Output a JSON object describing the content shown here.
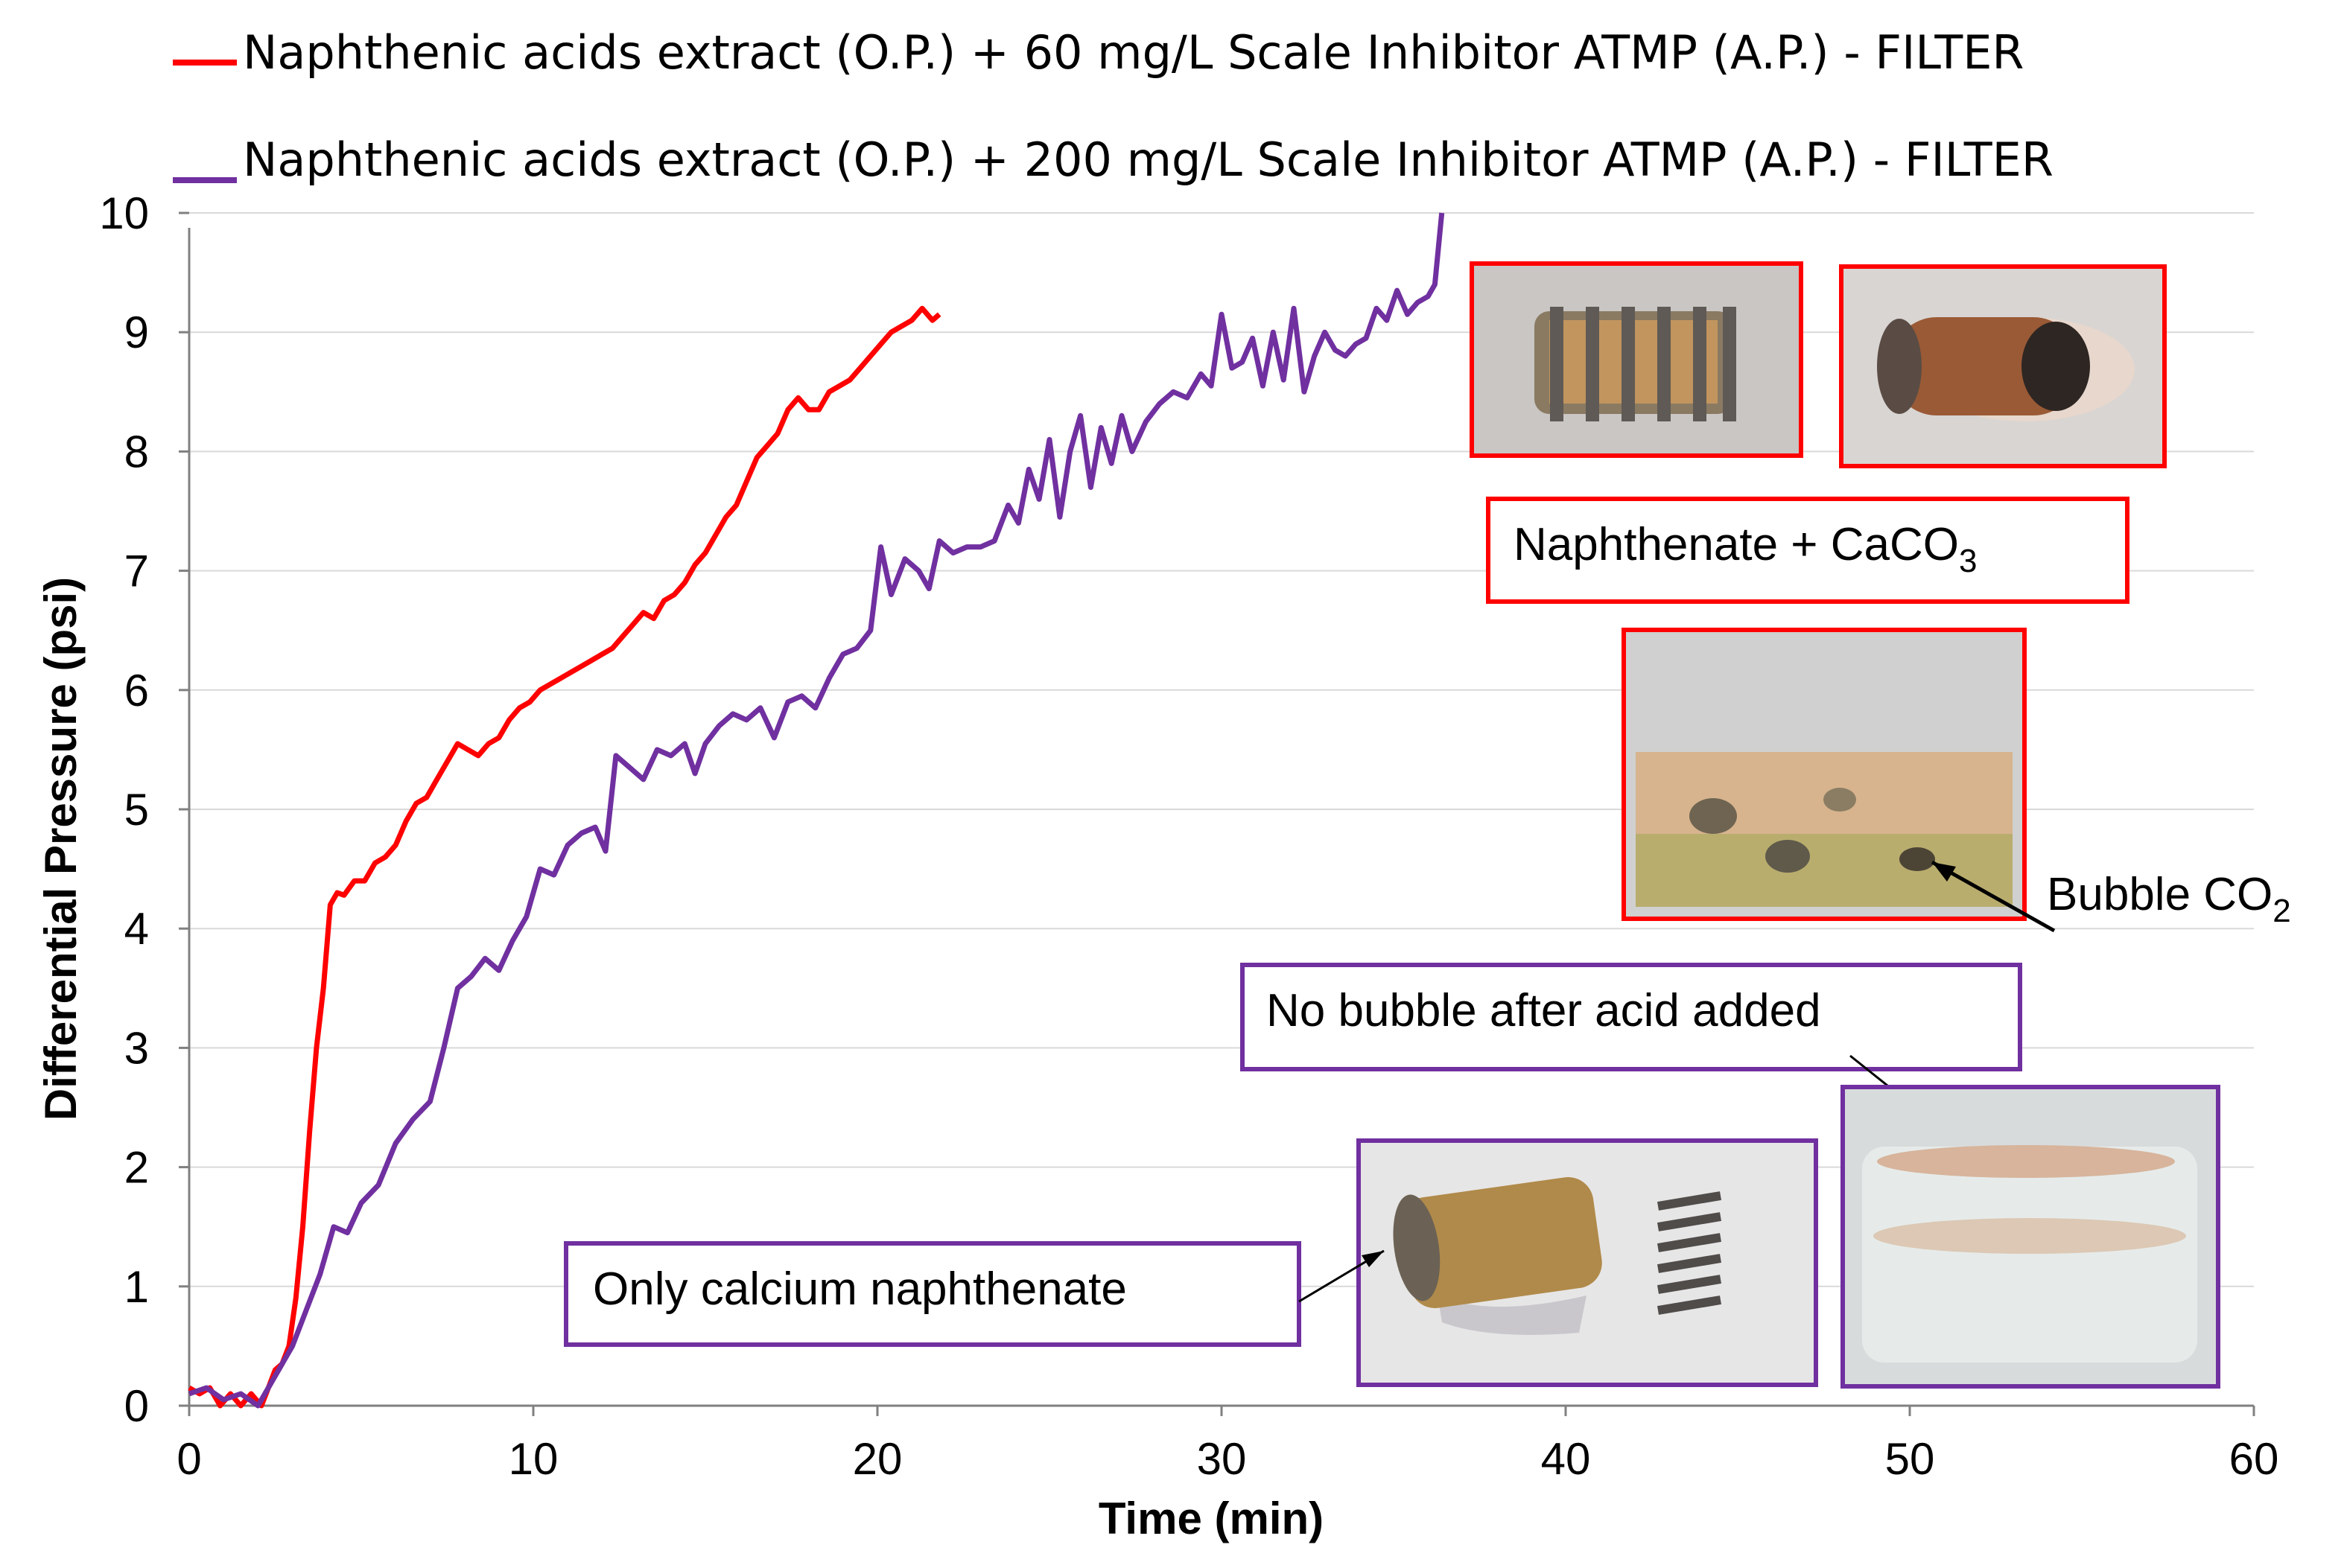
{
  "chart_data": {
    "type": "line",
    "xlabel": "Time (min)",
    "ylabel": "Differential Pressure (psi)",
    "xlim": [
      0,
      60
    ],
    "ylim": [
      0,
      10
    ],
    "xticks": [
      "0",
      "10",
      "20",
      "30",
      "40",
      "50",
      "60"
    ],
    "yticks": [
      "0",
      "1",
      "2",
      "3",
      "4",
      "5",
      "6",
      "7",
      "8",
      "9",
      "10"
    ],
    "grid": "horizontal",
    "legend_position": "top",
    "series": [
      {
        "name": "Naphthenic acids extract (O.P.) + 60 mg/L Scale Inhibitor ATMP (A.P.) - FILTER",
        "color": "#ff0000",
        "x": [
          0,
          0.3,
          0.6,
          0.9,
          1.2,
          1.5,
          1.8,
          2.1,
          2.3,
          2.5,
          2.7,
          2.9,
          3.1,
          3.3,
          3.5,
          3.7,
          3.9,
          4.1,
          4.3,
          4.5,
          4.8,
          5.1,
          5.4,
          5.7,
          6.0,
          6.3,
          6.6,
          6.9,
          7.2,
          7.5,
          7.8,
          8.1,
          8.4,
          8.7,
          9.0,
          9.3,
          9.6,
          9.9,
          10.2,
          10.5,
          10.8,
          11.1,
          11.4,
          11.7,
          12.0,
          12.3,
          12.6,
          12.9,
          13.2,
          13.5,
          13.8,
          14.1,
          14.4,
          14.7,
          15.0,
          15.3,
          15.6,
          15.9,
          16.2,
          16.5,
          16.8,
          17.1,
          17.4,
          17.7,
          18.0,
          18.3,
          18.6,
          18.9,
          19.2,
          19.5,
          19.8,
          20.1,
          20.4,
          20.7,
          21.0,
          21.3,
          21.6,
          21.8
        ],
        "values": [
          0.15,
          0.1,
          0.15,
          0.0,
          0.1,
          0.0,
          0.1,
          0.0,
          0.15,
          0.3,
          0.35,
          0.5,
          0.9,
          1.5,
          2.3,
          3.0,
          3.5,
          4.2,
          4.3,
          4.28,
          4.4,
          4.4,
          4.55,
          4.6,
          4.7,
          4.9,
          5.05,
          5.1,
          5.25,
          5.4,
          5.55,
          5.5,
          5.45,
          5.55,
          5.6,
          5.75,
          5.85,
          5.9,
          6.0,
          6.05,
          6.1,
          6.15,
          6.2,
          6.25,
          6.3,
          6.35,
          6.45,
          6.55,
          6.65,
          6.6,
          6.75,
          6.8,
          6.9,
          7.05,
          7.15,
          7.3,
          7.45,
          7.55,
          7.75,
          7.95,
          8.05,
          8.15,
          8.35,
          8.45,
          8.35,
          8.35,
          8.5,
          8.55,
          8.6,
          8.7,
          8.8,
          8.9,
          9.0,
          9.05,
          9.1,
          9.2,
          9.1,
          9.15
        ]
      },
      {
        "name": "Naphthenic acids extract (O.P.) + 200 mg/L Scale Inhibitor ATMP (A.P.) - FILTER",
        "color": "#7030a0",
        "x": [
          0,
          0.5,
          1.0,
          1.5,
          2.0,
          2.5,
          3.0,
          3.4,
          3.8,
          4.2,
          4.6,
          5.0,
          5.5,
          6.0,
          6.5,
          7.0,
          7.4,
          7.8,
          8.2,
          8.6,
          9.0,
          9.4,
          9.8,
          10.2,
          10.6,
          11.0,
          11.4,
          11.8,
          12.1,
          12.4,
          12.8,
          13.2,
          13.6,
          14.0,
          14.4,
          14.7,
          15.0,
          15.4,
          15.8,
          16.2,
          16.6,
          17.0,
          17.4,
          17.8,
          18.2,
          18.6,
          19.0,
          19.4,
          19.8,
          20.1,
          20.4,
          20.8,
          21.2,
          21.5,
          21.8,
          22.2,
          22.6,
          23.0,
          23.4,
          23.8,
          24.1,
          24.4,
          24.7,
          25.0,
          25.3,
          25.6,
          25.9,
          26.2,
          26.5,
          26.8,
          27.1,
          27.4,
          27.8,
          28.2,
          28.6,
          29.0,
          29.4,
          29.7,
          30.0,
          30.3,
          30.6,
          30.9,
          31.2,
          31.5,
          31.8,
          32.1,
          32.4,
          32.7,
          33.0,
          33.3,
          33.6,
          33.9,
          34.2,
          34.5,
          34.8,
          35.1,
          35.4,
          35.7,
          36.0,
          36.2,
          36.4
        ],
        "values": [
          0.1,
          0.15,
          0.05,
          0.1,
          0.0,
          0.25,
          0.5,
          0.8,
          1.1,
          1.5,
          1.45,
          1.7,
          1.85,
          2.2,
          2.4,
          2.55,
          3.0,
          3.5,
          3.6,
          3.75,
          3.65,
          3.9,
          4.1,
          4.5,
          4.45,
          4.7,
          4.8,
          4.85,
          4.65,
          5.45,
          5.35,
          5.25,
          5.5,
          5.45,
          5.55,
          5.3,
          5.55,
          5.7,
          5.8,
          5.75,
          5.85,
          5.6,
          5.9,
          5.95,
          5.85,
          6.1,
          6.3,
          6.35,
          6.5,
          7.2,
          6.8,
          7.1,
          7.0,
          6.85,
          7.25,
          7.15,
          7.2,
          7.2,
          7.25,
          7.55,
          7.4,
          7.85,
          7.6,
          8.1,
          7.45,
          8.0,
          8.3,
          7.7,
          8.2,
          7.9,
          8.3,
          8.0,
          8.25,
          8.4,
          8.5,
          8.45,
          8.65,
          8.55,
          9.15,
          8.7,
          8.75,
          8.95,
          8.55,
          9.0,
          8.6,
          9.2,
          8.5,
          8.8,
          9.0,
          8.85,
          8.8,
          8.9,
          8.95,
          9.2,
          9.1,
          9.35,
          9.15,
          9.25,
          9.3,
          9.4,
          10.0
        ]
      }
    ]
  },
  "annotations": {
    "naphthenate_caco3": {
      "text": "Naphthenate + CaCO",
      "sub": "3"
    },
    "bubble_co2": {
      "text": "Bubble CO",
      "sub": "2"
    },
    "no_bubble": {
      "text": "No bubble after acid added"
    },
    "only_calcium": {
      "text": "Only calcium naphthenate"
    }
  },
  "colors": {
    "red_frame": "#ff0000",
    "purple_frame": "#7030a0",
    "grid": "#d9d9d9",
    "axis": "#808080"
  }
}
